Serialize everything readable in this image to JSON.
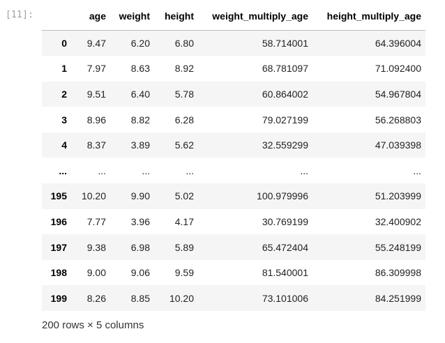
{
  "cell": {
    "prompt": "[11]:"
  },
  "dataframe": {
    "columns": [
      "",
      "age",
      "weight",
      "height",
      "weight_multiply_age",
      "height_multiply_age"
    ],
    "rows": [
      {
        "index": "0",
        "cells": [
          "9.47",
          "6.20",
          "6.80",
          "58.714001",
          "64.396004"
        ]
      },
      {
        "index": "1",
        "cells": [
          "7.97",
          "8.63",
          "8.92",
          "68.781097",
          "71.092400"
        ]
      },
      {
        "index": "2",
        "cells": [
          "9.51",
          "6.40",
          "5.78",
          "60.864002",
          "54.967804"
        ]
      },
      {
        "index": "3",
        "cells": [
          "8.96",
          "8.82",
          "6.28",
          "79.027199",
          "56.268803"
        ]
      },
      {
        "index": "4",
        "cells": [
          "8.37",
          "3.89",
          "5.62",
          "32.559299",
          "47.039398"
        ]
      },
      {
        "index": "...",
        "cells": [
          "...",
          "...",
          "...",
          "...",
          "..."
        ]
      },
      {
        "index": "195",
        "cells": [
          "10.20",
          "9.90",
          "5.02",
          "100.979996",
          "51.203999"
        ]
      },
      {
        "index": "196",
        "cells": [
          "7.77",
          "3.96",
          "4.17",
          "30.769199",
          "32.400902"
        ]
      },
      {
        "index": "197",
        "cells": [
          "9.38",
          "6.98",
          "5.89",
          "65.472404",
          "55.248199"
        ]
      },
      {
        "index": "198",
        "cells": [
          "9.00",
          "9.06",
          "9.59",
          "81.540001",
          "86.309998"
        ]
      },
      {
        "index": "199",
        "cells": [
          "8.26",
          "8.85",
          "10.20",
          "73.101006",
          "84.251999"
        ]
      }
    ],
    "summary": "200 rows × 5 columns"
  },
  "colors": {
    "row_stripe": "#f5f5f5",
    "prompt": "#9e9e9e",
    "header_border": "#bdbdbd"
  }
}
